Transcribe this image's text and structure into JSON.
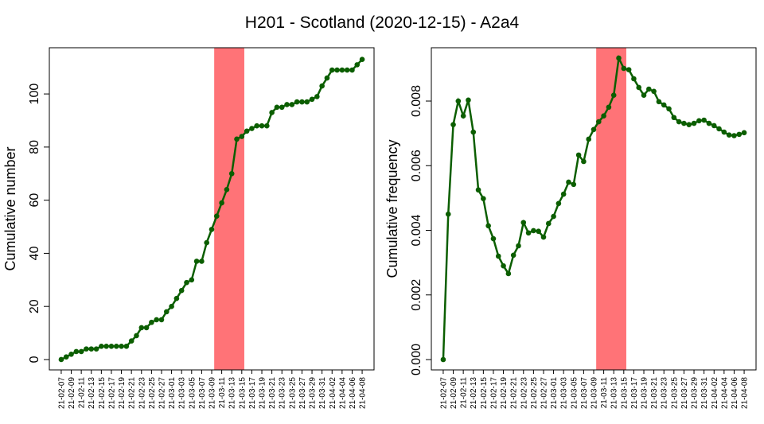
{
  "title": "H201 - Scotland (2020-12-15) - A2a4",
  "chart_data": [
    {
      "type": "line",
      "ylabel": "Cumulative number",
      "categories": [
        "21-02-07",
        null,
        "21-02-09",
        null,
        "21-02-11",
        null,
        "21-02-13",
        null,
        "21-02-15",
        null,
        "21-02-17",
        null,
        "21-02-19",
        null,
        "21-02-21",
        null,
        "21-02-23",
        null,
        "21-02-25",
        null,
        "21-02-27",
        null,
        "21-03-01",
        null,
        "21-03-03",
        null,
        "21-03-05",
        null,
        "21-03-07",
        null,
        "21-03-09",
        null,
        "21-03-11",
        null,
        "21-03-13",
        null,
        "21-03-15",
        null,
        "21-03-17",
        null,
        "21-03-19",
        null,
        "21-03-21",
        null,
        "21-03-23",
        null,
        "21-03-25",
        null,
        "21-03-27",
        null,
        "21-03-29",
        null,
        "21-03-31",
        null,
        "21-04-02",
        null,
        "21-04-04",
        null,
        "21-04-06",
        null,
        "21-04-08"
      ],
      "series": [
        {
          "color": "#0b5e00",
          "values": [
            0,
            1,
            2,
            3,
            3,
            4,
            4,
            4,
            5,
            5,
            5,
            5,
            5,
            5,
            7,
            9,
            12,
            12,
            14,
            15,
            15,
            18,
            20,
            23,
            26,
            29,
            30,
            37,
            37,
            44,
            49,
            54,
            59,
            64,
            70,
            83,
            84,
            86,
            87,
            88,
            88,
            88,
            93,
            95,
            95,
            96,
            96,
            97,
            97,
            97,
            98,
            99,
            103,
            106,
            109,
            109,
            109,
            109,
            109,
            111,
            113
          ]
        }
      ],
      "highlight": {
        "color": "#ff7377",
        "range": [
          30.5,
          36.5
        ]
      },
      "ylim": [
        -3.9,
        117.4
      ],
      "yticks": [
        0,
        20,
        40,
        60,
        80,
        100
      ]
    },
    {
      "type": "line",
      "ylabel": "Cumulative frequency",
      "categories": [
        "21-02-07",
        null,
        "21-02-09",
        null,
        "21-02-11",
        null,
        "21-02-13",
        null,
        "21-02-15",
        null,
        "21-02-17",
        null,
        "21-02-19",
        null,
        "21-02-21",
        null,
        "21-02-23",
        null,
        "21-02-25",
        null,
        "21-02-27",
        null,
        "21-03-01",
        null,
        "21-03-03",
        null,
        "21-03-05",
        null,
        "21-03-07",
        null,
        "21-03-09",
        null,
        "21-03-11",
        null,
        "21-03-13",
        null,
        "21-03-15",
        null,
        "21-03-17",
        null,
        "21-03-19",
        null,
        "21-03-21",
        null,
        "21-03-23",
        null,
        "21-03-25",
        null,
        "21-03-27",
        null,
        "21-03-29",
        null,
        "21-03-31",
        null,
        "21-04-02",
        null,
        "21-04-04",
        null,
        "21-04-06",
        null,
        "21-04-08"
      ],
      "series": [
        {
          "color": "#0b5e00",
          "values": [
            0,
            0.0045,
            0.00727,
            0.008,
            0.00754,
            0.00803,
            0.00704,
            0.00525,
            0.00498,
            0.00414,
            0.00374,
            0.0032,
            0.0029,
            0.00266,
            0.00323,
            0.00352,
            0.00424,
            0.00392,
            0.00399,
            0.00397,
            0.00379,
            0.00421,
            0.00443,
            0.00483,
            0.00512,
            0.00549,
            0.00542,
            0.00633,
            0.00613,
            0.00682,
            0.00712,
            0.00736,
            0.00754,
            0.00781,
            0.00818,
            0.00933,
            0.00901,
            0.00897,
            0.00869,
            0.00842,
            0.00818,
            0.00837,
            0.0083,
            0.00798,
            0.00788,
            0.00776,
            0.00749,
            0.00736,
            0.00731,
            0.00727,
            0.00731,
            0.00739,
            0.00741,
            0.00731,
            0.00724,
            0.00714,
            0.00704,
            0.00695,
            0.00693,
            0.00697,
            0.00702
          ]
        }
      ],
      "highlight": {
        "color": "#ff7377",
        "range": [
          30.5,
          36.5
        ]
      },
      "ylim": [
        -0.00032,
        0.00965
      ],
      "yticks": [
        {
          "value": 0,
          "label": "0.000"
        },
        0.002,
        0.004,
        0.006,
        0.008
      ]
    }
  ]
}
